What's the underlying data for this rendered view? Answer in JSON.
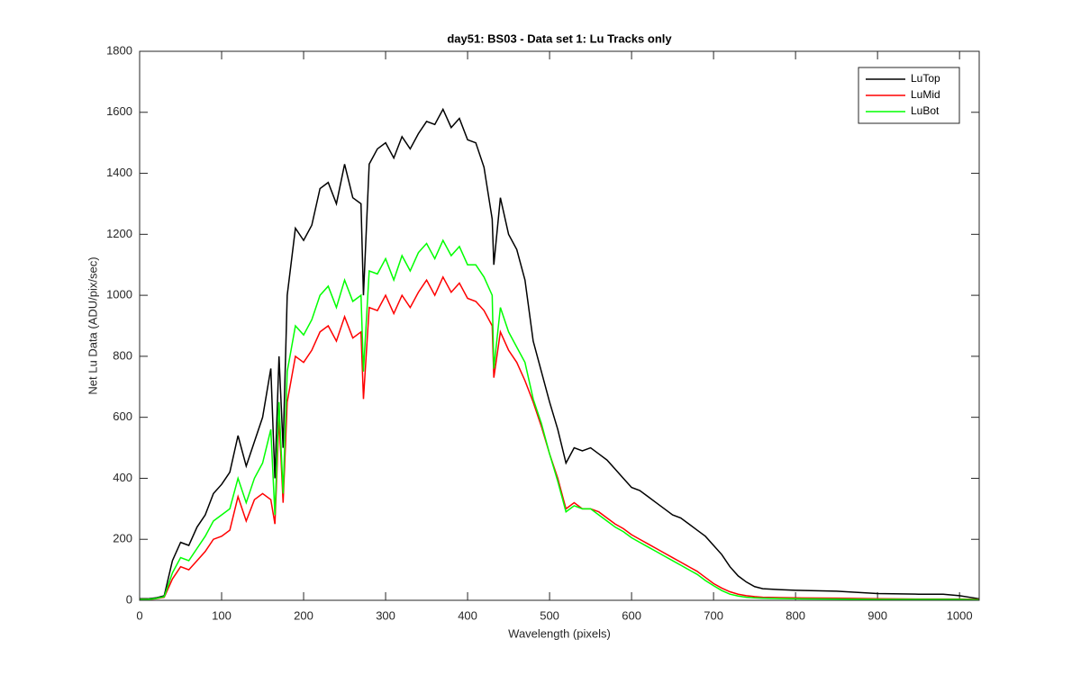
{
  "chart_data": {
    "type": "line",
    "title": "day51: BS03 - Data set 1: Lu Tracks only",
    "x_label": "Wavelength (pixels)",
    "y_label": "Net Lu Data (ADU/pix/sec)",
    "x": [
      0,
      10,
      20,
      30,
      40,
      50,
      60,
      70,
      80,
      90,
      100,
      110,
      120,
      130,
      140,
      150,
      160,
      165,
      170,
      175,
      180,
      190,
      200,
      210,
      220,
      230,
      240,
      250,
      260,
      270,
      273,
      280,
      290,
      300,
      310,
      320,
      330,
      340,
      350,
      360,
      370,
      380,
      390,
      400,
      410,
      420,
      430,
      432,
      440,
      450,
      460,
      470,
      480,
      490,
      500,
      510,
      520,
      530,
      540,
      550,
      560,
      570,
      580,
      590,
      600,
      610,
      620,
      630,
      640,
      650,
      660,
      670,
      680,
      690,
      700,
      710,
      720,
      730,
      740,
      750,
      760,
      780,
      800,
      850,
      900,
      950,
      980,
      1000,
      1024
    ],
    "series": [
      {
        "name": "LuTop",
        "color": "#000000",
        "values": [
          5,
          5,
          8,
          15,
          130,
          190,
          180,
          240,
          280,
          350,
          380,
          420,
          540,
          440,
          520,
          600,
          760,
          400,
          800,
          500,
          1000,
          1220,
          1180,
          1230,
          1350,
          1370,
          1300,
          1430,
          1320,
          1300,
          1000,
          1430,
          1480,
          1500,
          1450,
          1520,
          1480,
          1530,
          1570,
          1560,
          1610,
          1550,
          1580,
          1510,
          1500,
          1420,
          1250,
          1100,
          1320,
          1200,
          1150,
          1050,
          850,
          750,
          650,
          560,
          450,
          500,
          490,
          500,
          480,
          460,
          430,
          400,
          370,
          360,
          340,
          320,
          300,
          280,
          270,
          250,
          230,
          210,
          180,
          150,
          110,
          80,
          60,
          45,
          38,
          35,
          33,
          30,
          22,
          20,
          20,
          15,
          5
        ]
      },
      {
        "name": "LuMid",
        "color": "#ff0000",
        "values": [
          3,
          3,
          5,
          10,
          70,
          110,
          100,
          130,
          160,
          200,
          210,
          230,
          340,
          260,
          330,
          350,
          330,
          250,
          600,
          320,
          650,
          800,
          780,
          820,
          880,
          900,
          850,
          930,
          860,
          880,
          660,
          960,
          950,
          1000,
          940,
          1000,
          960,
          1010,
          1050,
          1000,
          1060,
          1010,
          1040,
          990,
          980,
          950,
          900,
          730,
          880,
          820,
          780,
          720,
          650,
          570,
          480,
          400,
          300,
          320,
          300,
          300,
          290,
          270,
          250,
          235,
          215,
          200,
          185,
          170,
          155,
          140,
          125,
          110,
          95,
          75,
          55,
          40,
          28,
          20,
          15,
          12,
          10,
          9,
          8,
          7,
          5,
          4,
          4,
          4,
          3
        ]
      },
      {
        "name": "LuBot",
        "color": "#00ff00",
        "values": [
          3,
          3,
          6,
          12,
          90,
          140,
          130,
          170,
          210,
          260,
          280,
          300,
          400,
          320,
          400,
          450,
          560,
          280,
          650,
          350,
          750,
          900,
          870,
          920,
          1000,
          1030,
          960,
          1050,
          980,
          1000,
          750,
          1080,
          1070,
          1120,
          1050,
          1130,
          1080,
          1140,
          1170,
          1120,
          1180,
          1130,
          1160,
          1100,
          1100,
          1060,
          1000,
          760,
          960,
          880,
          830,
          780,
          660,
          580,
          480,
          390,
          290,
          310,
          300,
          300,
          280,
          260,
          240,
          225,
          205,
          190,
          175,
          160,
          145,
          130,
          115,
          100,
          85,
          65,
          48,
          32,
          20,
          14,
          10,
          8,
          7,
          6,
          5,
          4,
          3,
          3,
          3,
          3,
          2
        ]
      }
    ],
    "xlim": [
      0,
      1024
    ],
    "ylim": [
      0,
      1800
    ],
    "xticks": [
      0,
      100,
      200,
      300,
      400,
      500,
      600,
      700,
      800,
      900,
      1000
    ],
    "yticks": [
      0,
      200,
      400,
      600,
      800,
      1000,
      1200,
      1400,
      1600,
      1800
    ],
    "legend": "upper right"
  }
}
